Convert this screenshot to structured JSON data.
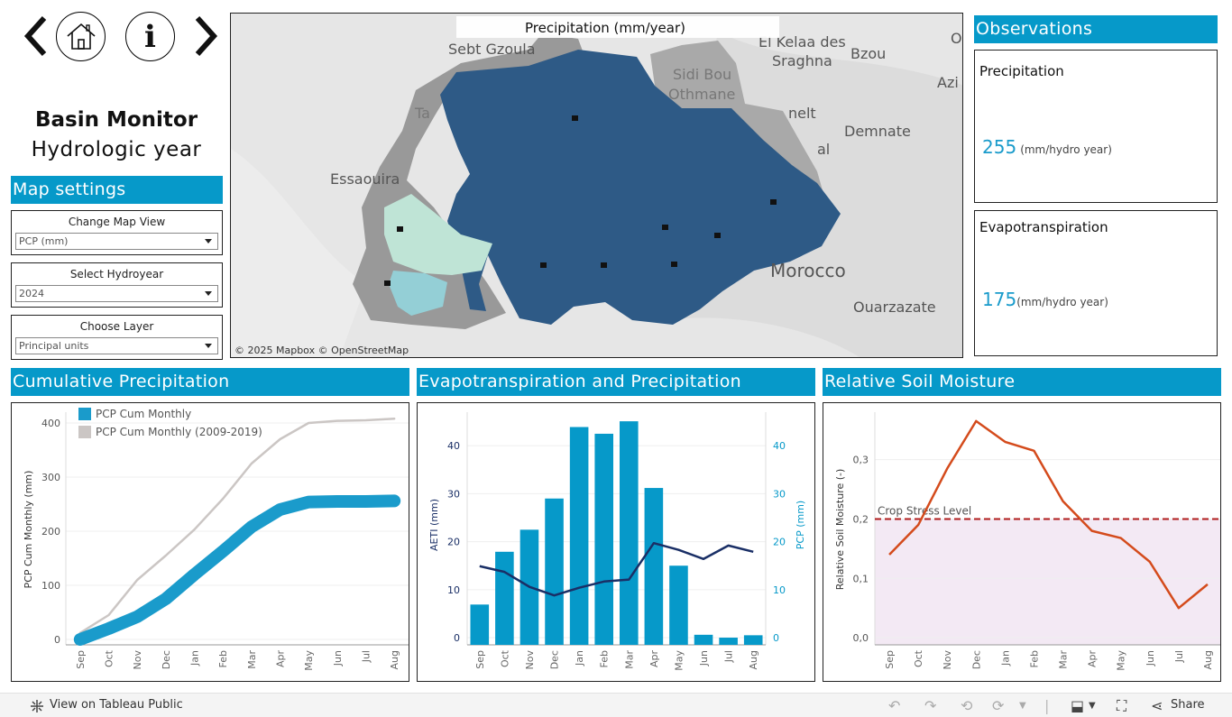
{
  "nav": {
    "back_icon": "chevron-left-icon",
    "home_icon": "home-icon",
    "info_icon": "info-icon",
    "forward_icon": "chevron-right-icon",
    "info_glyph": "i"
  },
  "header": {
    "title": "Basin Monitor",
    "subtitle": "Hydrologic year"
  },
  "map_settings": {
    "title": "Map settings",
    "filters": [
      {
        "label": "Change Map View",
        "value": "PCP (mm)"
      },
      {
        "label": "Select Hydroyear",
        "value": "2024"
      },
      {
        "label": "Choose Layer",
        "value": "Principal units"
      }
    ]
  },
  "map": {
    "title": "Precipitation (mm/year)",
    "attribution": "© 2025 Mapbox  © OpenStreetMap",
    "places": [
      "Sebt Gzoula",
      "El Kelaa des",
      "Sraghna",
      "Bzou",
      "Sidi Bou",
      "Othmane",
      "Essaouira",
      "Morocco",
      "Demnate",
      "Ouarzazate",
      "Azi",
      "O",
      "Ta",
      "nelt",
      "al"
    ],
    "colors": {
      "dark_unit": "#2e5a86",
      "light_unit": "#bfe4d6",
      "mid_unit": "#94cfd6",
      "grey_unit": "#999999"
    }
  },
  "observations": {
    "title": "Observations",
    "cards": [
      {
        "title": "Precipitation",
        "value": "255",
        "unit": "(mm/hydro year)"
      },
      {
        "title": "Evapotranspiration",
        "value": "175",
        "unit": "(mm/hydro year)"
      }
    ]
  },
  "charts": {
    "cumulative": {
      "title": "Cumulative Precipitation"
    },
    "et_pcp": {
      "title": "Evapotranspiration and Precipitation"
    },
    "soil": {
      "title": "Relative Soil Moisture"
    }
  },
  "chart_data": [
    {
      "type": "line",
      "title": "Cumulative Precipitation",
      "categories": [
        "Sep",
        "Oct",
        "Nov",
        "Dec",
        "Jan",
        "Feb",
        "Mar",
        "Apr",
        "May",
        "Jun",
        "Jul",
        "Aug"
      ],
      "ylabel": "PCP Cum Monthly (mm)",
      "yticks": [
        "0",
        "100",
        "200",
        "300",
        "400"
      ],
      "ylim": [
        -10,
        420
      ],
      "legend_position": "top-left",
      "series": [
        {
          "name": "PCP Cum Monthly",
          "color": "#1a9bcb",
          "values": [
            0,
            20,
            42,
            75,
            120,
            163,
            208,
            240,
            254,
            255,
            255,
            256
          ]
        },
        {
          "name": "PCP Cum Monthly (2009-2019)",
          "color": "#cbc6c4",
          "values": [
            12,
            45,
            110,
            155,
            203,
            260,
            325,
            370,
            400,
            404,
            405,
            408
          ]
        }
      ]
    },
    {
      "type": "bar",
      "title": "Evapotranspiration and Precipitation",
      "categories": [
        "Sep",
        "Oct",
        "Nov",
        "Dec",
        "Jan",
        "Feb",
        "Mar",
        "Apr",
        "May",
        "Jun",
        "Jul",
        "Aug"
      ],
      "ylabel": "AETI (mm)",
      "y2label": "PCP (mm)",
      "yticks": [
        "0",
        "10",
        "20",
        "30",
        "40"
      ],
      "y2ticks": [
        "0",
        "10",
        "20",
        "30",
        "40"
      ],
      "ylim": [
        -1.5,
        47
      ],
      "series": [
        {
          "name": "PCP",
          "type": "bar",
          "color": "#0699c9",
          "values": [
            6.9,
            17.9,
            22.5,
            29,
            43.9,
            42.5,
            45.1,
            31.2,
            15,
            0.6,
            0,
            0.5
          ]
        },
        {
          "name": "AETI",
          "type": "line",
          "color": "#1a2f66",
          "values": [
            14.9,
            13.7,
            10.6,
            8.8,
            10.4,
            11.7,
            12.1,
            19.7,
            18.3,
            16.4,
            19.2,
            17.9
          ]
        }
      ]
    },
    {
      "type": "line",
      "title": "Relative Soil Moisture",
      "categories": [
        "Sep",
        "Oct",
        "Nov",
        "Dec",
        "Jan",
        "Feb",
        "Mar",
        "Apr",
        "May",
        "Jun",
        "Jul",
        "Aug"
      ],
      "ylabel": "Relative Soil Moisture (-)",
      "yticks": [
        "0,0",
        "0,1",
        "0,2",
        "0,3"
      ],
      "ylim": [
        -0.012,
        0.38
      ],
      "threshold": {
        "label": "Crop Stress Level",
        "value": 0.2,
        "color": "#b01c1c"
      },
      "series": [
        {
          "name": "Relative Soil Moisture",
          "color": "#d44b1c",
          "values": [
            0.14,
            0.19,
            0.285,
            0.365,
            0.33,
            0.315,
            0.23,
            0.18,
            0.168,
            0.128,
            0.05,
            0.09
          ]
        }
      ]
    }
  ],
  "footer": {
    "view_link": "View on Tableau Public",
    "share_label": "Share"
  }
}
